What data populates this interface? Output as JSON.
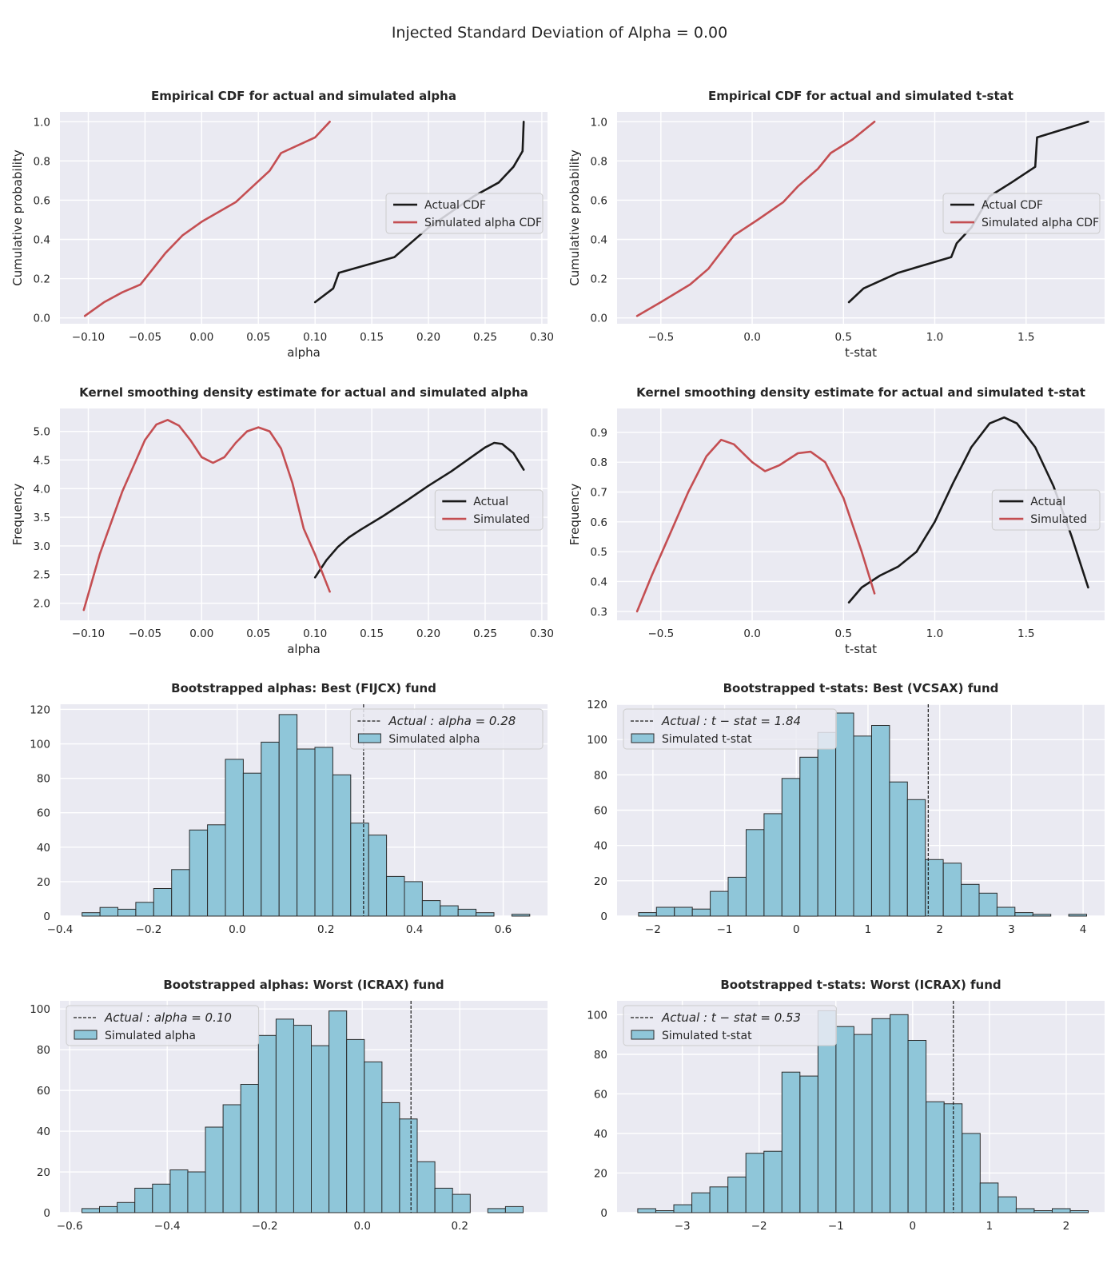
{
  "figure": {
    "suptitle": "Injected Standard Deviation of Alpha = 0.00"
  },
  "colors": {
    "panel_bg": "#eaeaf2",
    "grid": "#ffffff",
    "actual_line": "#1a1a1a",
    "simulated_line": "#c44e52",
    "hist_fill": "#8fc6d9",
    "hist_edge": "#2b2b2b",
    "text": "#262626"
  },
  "chart_data": [
    {
      "id": "cdf-alpha",
      "type": "line",
      "title": "Empirical CDF for actual and simulated alpha",
      "xlabel": "alpha",
      "ylabel": "Cumulative probability",
      "xlim": [
        -0.125,
        0.305
      ],
      "ylim": [
        -0.03,
        1.05
      ],
      "xticks": [
        -0.1,
        -0.05,
        0.0,
        0.05,
        0.1,
        0.15,
        0.2,
        0.25,
        0.3
      ],
      "xtick_labels": [
        "−0.10",
        "−0.05",
        "0.00",
        "0.05",
        "0.10",
        "0.15",
        "0.20",
        "0.25",
        "0.30"
      ],
      "yticks": [
        0.0,
        0.2,
        0.4,
        0.6,
        0.8,
        1.0
      ],
      "ytick_labels": [
        "0.0",
        "0.2",
        "0.4",
        "0.6",
        "0.8",
        "1.0"
      ],
      "grid": true,
      "legend": "center-right",
      "series": [
        {
          "name": "Actual CDF",
          "color": "#1a1a1a",
          "x": [
            0.1,
            0.116,
            0.121,
            0.17,
            0.2,
            0.24,
            0.262,
            0.275,
            0.283,
            0.284
          ],
          "y": [
            0.08,
            0.15,
            0.23,
            0.31,
            0.46,
            0.62,
            0.69,
            0.77,
            0.85,
            1.0
          ]
        },
        {
          "name": "Simulated alpha CDF",
          "color": "#c44e52",
          "x": [
            -0.103,
            -0.086,
            -0.07,
            -0.054,
            -0.043,
            -0.032,
            -0.017,
            0.0,
            0.015,
            0.03,
            0.045,
            0.06,
            0.07,
            0.085,
            0.1,
            0.113
          ],
          "y": [
            0.01,
            0.08,
            0.13,
            0.17,
            0.25,
            0.33,
            0.42,
            0.49,
            0.54,
            0.59,
            0.67,
            0.75,
            0.84,
            0.88,
            0.92,
            1.0
          ]
        }
      ]
    },
    {
      "id": "cdf-tstat",
      "type": "line",
      "title": "Empirical CDF for actual and simulated t-stat",
      "xlabel": "t-stat",
      "ylabel": "Cumulative probability",
      "xlim": [
        -0.74,
        1.93
      ],
      "ylim": [
        -0.03,
        1.05
      ],
      "xticks": [
        -0.5,
        0.0,
        0.5,
        1.0,
        1.5
      ],
      "xtick_labels": [
        "−0.5",
        "0.0",
        "0.5",
        "1.0",
        "1.5"
      ],
      "yticks": [
        0.0,
        0.2,
        0.4,
        0.6,
        0.8,
        1.0
      ],
      "ytick_labels": [
        "0.0",
        "0.2",
        "0.4",
        "0.6",
        "0.8",
        "1.0"
      ],
      "grid": true,
      "legend": "center-right",
      "series": [
        {
          "name": "Actual CDF",
          "color": "#1a1a1a",
          "x": [
            0.53,
            0.61,
            0.8,
            1.09,
            1.12,
            1.2,
            1.3,
            1.42,
            1.55,
            1.56,
            1.84
          ],
          "y": [
            0.08,
            0.15,
            0.23,
            0.31,
            0.38,
            0.46,
            0.62,
            0.69,
            0.77,
            0.92,
            1.0
          ]
        },
        {
          "name": "Simulated alpha CDF",
          "color": "#c44e52",
          "x": [
            -0.63,
            -0.5,
            -0.34,
            -0.24,
            -0.1,
            0.03,
            0.17,
            0.25,
            0.36,
            0.43,
            0.55,
            0.67
          ],
          "y": [
            0.01,
            0.08,
            0.17,
            0.25,
            0.42,
            0.5,
            0.59,
            0.67,
            0.76,
            0.84,
            0.91,
            1.0
          ]
        }
      ]
    },
    {
      "id": "kde-alpha",
      "type": "line",
      "title": "Kernel smoothing density estimate for actual and simulated alpha",
      "xlabel": "alpha",
      "ylabel": "Frequency",
      "xlim": [
        -0.125,
        0.305
      ],
      "ylim": [
        1.7,
        5.4
      ],
      "xticks": [
        -0.1,
        -0.05,
        0.0,
        0.05,
        0.1,
        0.15,
        0.2,
        0.25,
        0.3
      ],
      "xtick_labels": [
        "−0.10",
        "−0.05",
        "0.00",
        "0.05",
        "0.10",
        "0.15",
        "0.20",
        "0.25",
        "0.30"
      ],
      "yticks": [
        2.0,
        2.5,
        3.0,
        3.5,
        4.0,
        4.5,
        5.0
      ],
      "ytick_labels": [
        "2.0",
        "2.5",
        "3.0",
        "3.5",
        "4.0",
        "4.5",
        "5.0"
      ],
      "grid": true,
      "legend": "center-right",
      "series": [
        {
          "name": "Actual",
          "color": "#1a1a1a",
          "x": [
            0.1,
            0.11,
            0.12,
            0.13,
            0.14,
            0.16,
            0.18,
            0.2,
            0.22,
            0.24,
            0.25,
            0.258,
            0.265,
            0.275,
            0.284
          ],
          "y": [
            2.45,
            2.75,
            2.98,
            3.15,
            3.28,
            3.52,
            3.78,
            4.05,
            4.3,
            4.58,
            4.72,
            4.8,
            4.78,
            4.62,
            4.33
          ]
        },
        {
          "name": "Simulated",
          "color": "#c44e52",
          "x": [
            -0.104,
            -0.09,
            -0.07,
            -0.05,
            -0.04,
            -0.03,
            -0.02,
            -0.01,
            0.0,
            0.01,
            0.02,
            0.03,
            0.04,
            0.05,
            0.06,
            0.07,
            0.08,
            0.09,
            0.1,
            0.113
          ],
          "y": [
            1.88,
            2.85,
            3.95,
            4.85,
            5.12,
            5.2,
            5.1,
            4.85,
            4.55,
            4.45,
            4.55,
            4.8,
            5.0,
            5.07,
            5.0,
            4.7,
            4.1,
            3.3,
            2.85,
            2.2
          ]
        }
      ]
    },
    {
      "id": "kde-tstat",
      "type": "line",
      "title": "Kernel smoothing density estimate for actual and simulated t-stat",
      "xlabel": "t-stat",
      "ylabel": "Frequency",
      "xlim": [
        -0.74,
        1.93
      ],
      "ylim": [
        0.27,
        0.98
      ],
      "xticks": [
        -0.5,
        0.0,
        0.5,
        1.0,
        1.5
      ],
      "xtick_labels": [
        "−0.5",
        "0.0",
        "0.5",
        "1.0",
        "1.5"
      ],
      "yticks": [
        0.3,
        0.4,
        0.5,
        0.6,
        0.7,
        0.8,
        0.9
      ],
      "ytick_labels": [
        "0.3",
        "0.4",
        "0.5",
        "0.6",
        "0.7",
        "0.8",
        "0.9"
      ],
      "grid": true,
      "legend": "center-right",
      "series": [
        {
          "name": "Actual",
          "color": "#1a1a1a",
          "x": [
            0.53,
            0.6,
            0.7,
            0.8,
            0.9,
            1.0,
            1.1,
            1.2,
            1.3,
            1.38,
            1.45,
            1.55,
            1.65,
            1.75,
            1.84
          ],
          "y": [
            0.33,
            0.38,
            0.42,
            0.45,
            0.5,
            0.6,
            0.73,
            0.85,
            0.93,
            0.95,
            0.93,
            0.85,
            0.72,
            0.55,
            0.38
          ]
        },
        {
          "name": "Simulated",
          "color": "#c44e52",
          "x": [
            -0.63,
            -0.55,
            -0.45,
            -0.35,
            -0.25,
            -0.17,
            -0.1,
            0.0,
            0.07,
            0.15,
            0.25,
            0.32,
            0.4,
            0.5,
            0.6,
            0.67
          ],
          "y": [
            0.3,
            0.42,
            0.56,
            0.7,
            0.82,
            0.875,
            0.86,
            0.8,
            0.77,
            0.79,
            0.83,
            0.835,
            0.8,
            0.68,
            0.5,
            0.36
          ]
        }
      ]
    },
    {
      "id": "boot-alpha-best",
      "type": "bar",
      "title": "Bootstrapped alphas: Best (FIJCX) fund",
      "xlabel": "",
      "ylabel": "",
      "xlim": [
        -0.4,
        0.7
      ],
      "ylim": [
        0,
        123
      ],
      "xticks": [
        -0.4,
        -0.2,
        0.0,
        0.2,
        0.4,
        0.6
      ],
      "xtick_labels": [
        "−0.4",
        "−0.2",
        "0.0",
        "0.2",
        "0.4",
        "0.6"
      ],
      "yticks": [
        0,
        20,
        40,
        60,
        80,
        100,
        120
      ],
      "ytick_labels": [
        "0",
        "20",
        "40",
        "60",
        "80",
        "100",
        "120"
      ],
      "grid": true,
      "legend": "top-right",
      "bin_start": -0.35,
      "bin_width": 0.0404,
      "counts": [
        2,
        5,
        4,
        8,
        16,
        27,
        50,
        53,
        91,
        83,
        101,
        117,
        97,
        98,
        82,
        54,
        47,
        23,
        20,
        9,
        6,
        4,
        2,
        0,
        1
      ],
      "actual_value": 0.285,
      "actual_label": "Actual : alpha = 0.28",
      "hist_label": "Simulated alpha"
    },
    {
      "id": "boot-tstat-best",
      "type": "bar",
      "title": "Bootstrapped t-stats: Best (VCSAX) fund",
      "xlabel": "",
      "ylabel": "",
      "xlim": [
        -2.5,
        4.3
      ],
      "ylim": [
        0,
        120
      ],
      "xticks": [
        -2,
        -1,
        0,
        1,
        2,
        3,
        4
      ],
      "xtick_labels": [
        "−2",
        "−1",
        "0",
        "1",
        "2",
        "3",
        "4"
      ],
      "yticks": [
        0,
        20,
        40,
        60,
        80,
        100,
        120
      ],
      "ytick_labels": [
        "0",
        "20",
        "40",
        "60",
        "80",
        "100",
        "120"
      ],
      "grid": true,
      "legend": "top-left",
      "bin_start": -2.2,
      "bin_width": 0.25,
      "counts": [
        2,
        5,
        5,
        4,
        14,
        22,
        49,
        58,
        78,
        90,
        104,
        115,
        102,
        108,
        76,
        66,
        32,
        30,
        18,
        13,
        5,
        2,
        1,
        0,
        1
      ],
      "actual_value": 1.84,
      "actual_label": "Actual : t − stat = 1.84",
      "hist_label": "Simulated t-stat"
    },
    {
      "id": "boot-alpha-worst",
      "type": "bar",
      "title": "Bootstrapped alphas: Worst (ICRAX) fund",
      "xlabel": "",
      "ylabel": "",
      "xlim": [
        -0.62,
        0.38
      ],
      "ylim": [
        0,
        104
      ],
      "xticks": [
        -0.6,
        -0.4,
        -0.2,
        0.0,
        0.2
      ],
      "xtick_labels": [
        "−0.6",
        "−0.4",
        "−0.2",
        "0.0",
        "0.2"
      ],
      "yticks": [
        0,
        20,
        40,
        60,
        80,
        100
      ],
      "ytick_labels": [
        "0",
        "20",
        "40",
        "60",
        "80",
        "100"
      ],
      "grid": true,
      "legend": "top-left",
      "bin_start": -0.575,
      "bin_width": 0.0362,
      "counts": [
        2,
        3,
        5,
        12,
        14,
        21,
        20,
        42,
        53,
        63,
        87,
        95,
        92,
        82,
        99,
        85,
        74,
        54,
        46,
        25,
        12,
        9,
        0,
        2,
        3
      ],
      "actual_value": 0.1,
      "actual_label": "Actual : alpha = 0.10",
      "hist_label": "Simulated alpha"
    },
    {
      "id": "boot-tstat-worst",
      "type": "bar",
      "title": "Bootstrapped t-stats: Worst (ICRAX) fund",
      "xlabel": "",
      "ylabel": "",
      "xlim": [
        -3.85,
        2.5
      ],
      "ylim": [
        0,
        107
      ],
      "xticks": [
        -3,
        -2,
        -1,
        0,
        1,
        2
      ],
      "xtick_labels": [
        "−3",
        "−2",
        "−1",
        "0",
        "1",
        "2"
      ],
      "yticks": [
        0,
        20,
        40,
        60,
        80,
        100
      ],
      "ytick_labels": [
        "0",
        "20",
        "40",
        "60",
        "80",
        "100"
      ],
      "grid": true,
      "legend": "top-left",
      "bin_start": -3.58,
      "bin_width": 0.2347,
      "counts": [
        2,
        1,
        4,
        10,
        13,
        18,
        30,
        31,
        71,
        69,
        102,
        94,
        90,
        98,
        100,
        87,
        56,
        55,
        40,
        15,
        8,
        2,
        1,
        2,
        1
      ],
      "actual_value": 0.53,
      "actual_label": "Actual : t − stat = 0.53",
      "hist_label": "Simulated t-stat"
    }
  ]
}
